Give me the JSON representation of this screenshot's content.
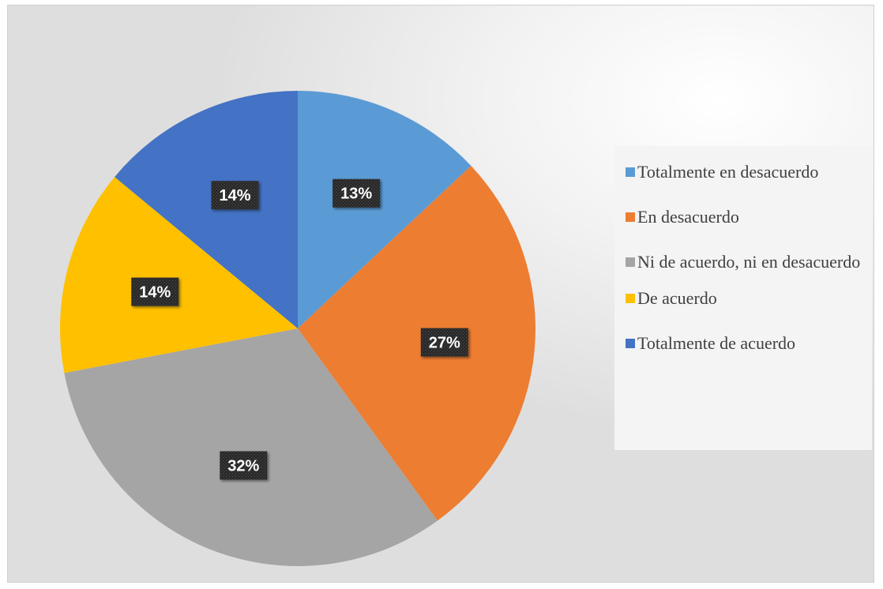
{
  "chart_data": {
    "type": "pie",
    "title": "",
    "slices": [
      {
        "label": "Totalmente en desacuerdo",
        "value": 13,
        "display": "13%",
        "color": "#5B9BD5"
      },
      {
        "label": "En desacuerdo",
        "value": 27,
        "display": "27%",
        "color": "#ED7D31"
      },
      {
        "label": "Ni de acuerdo, ni en desacuerdo",
        "value": 32,
        "display": "32%",
        "color": "#A5A5A5"
      },
      {
        "label": "De acuerdo",
        "value": 14,
        "display": "14%",
        "color": "#FFC000"
      },
      {
        "label": "Totalmente de acuerdo",
        "value": 14,
        "display": "14%",
        "color": "#4472C4"
      }
    ],
    "legend_position": "right",
    "data_label_style": "white bold text on dark patterned box"
  }
}
